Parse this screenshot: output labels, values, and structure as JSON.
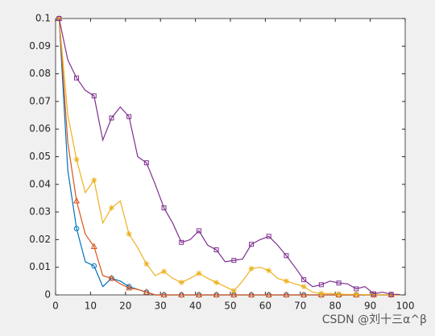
{
  "chart_data": {
    "type": "line",
    "x": [
      1,
      3.5,
      6,
      8.5,
      11,
      13.5,
      16,
      18.5,
      21,
      23.5,
      26,
      28.5,
      31,
      33.5,
      36,
      38.5,
      41,
      43.5,
      46,
      48.5,
      51,
      53.5,
      56,
      58.5,
      61,
      63.5,
      66,
      68.5,
      71,
      73.5,
      76,
      78.5,
      81,
      83.5,
      86,
      88.5,
      91,
      93.5,
      96,
      98.5
    ],
    "series": [
      {
        "color": "#0072bd",
        "marker": "circle",
        "values": [
          0.1,
          0.045,
          0.024,
          0.012,
          0.0105,
          0.003,
          0.006,
          0.005,
          0.003,
          0.002,
          0.001,
          0,
          0,
          0,
          0,
          0,
          0,
          0,
          0,
          0,
          0,
          0,
          0,
          0,
          0,
          0,
          0,
          0,
          0,
          0,
          0,
          0,
          0,
          0,
          0,
          0,
          0,
          0,
          0,
          0
        ]
      },
      {
        "color": "#d95319",
        "marker": "triangle",
        "values": [
          0.1,
          0.055,
          0.034,
          0.022,
          0.0175,
          0.007,
          0.006,
          0.004,
          0.0025,
          0.002,
          0.001,
          0,
          0,
          0,
          0,
          0,
          0,
          0,
          0,
          0,
          0,
          0,
          0,
          0,
          0,
          0,
          0,
          0,
          0,
          0,
          0,
          0,
          0,
          0,
          0,
          0,
          0,
          0,
          0,
          0
        ]
      },
      {
        "color": "#edb120",
        "marker": "star",
        "values": [
          0.1,
          0.065,
          0.049,
          0.037,
          0.0415,
          0.026,
          0.0315,
          0.034,
          0.022,
          0.017,
          0.0112,
          0.007,
          0.0085,
          0.006,
          0.0045,
          0.006,
          0.0078,
          0.006,
          0.0045,
          0.003,
          0.0015,
          0.005,
          0.0095,
          0.01,
          0.0088,
          0.006,
          0.005,
          0.004,
          0.003,
          0.001,
          0.0005,
          0.0005,
          0.0003,
          0.0002,
          0.0002,
          0.0001,
          0.0001,
          0,
          0,
          0
        ]
      },
      {
        "color": "#7e2f8e",
        "marker": "square",
        "values": [
          0.1,
          0.085,
          0.0785,
          0.074,
          0.072,
          0.056,
          0.064,
          0.068,
          0.0645,
          0.05,
          0.0478,
          0.04,
          0.0315,
          0.026,
          0.019,
          0.02,
          0.0232,
          0.018,
          0.0163,
          0.012,
          0.0125,
          0.013,
          0.0183,
          0.02,
          0.0212,
          0.018,
          0.0142,
          0.01,
          0.0055,
          0.003,
          0.0037,
          0.005,
          0.0043,
          0.004,
          0.0022,
          0.003,
          0.0004,
          0.001,
          0.0002,
          0.0002
        ]
      }
    ],
    "xlim": [
      0,
      100
    ],
    "xticks": [
      0,
      10,
      20,
      30,
      40,
      50,
      60,
      70,
      80,
      90,
      100
    ],
    "ylim": [
      0,
      0.1
    ],
    "yticks": [
      0,
      0.01,
      0.02,
      0.03,
      0.04,
      0.05,
      0.06,
      0.07,
      0.08,
      0.09,
      0.1
    ],
    "watermark": "CSDN @刘十三α^β"
  }
}
